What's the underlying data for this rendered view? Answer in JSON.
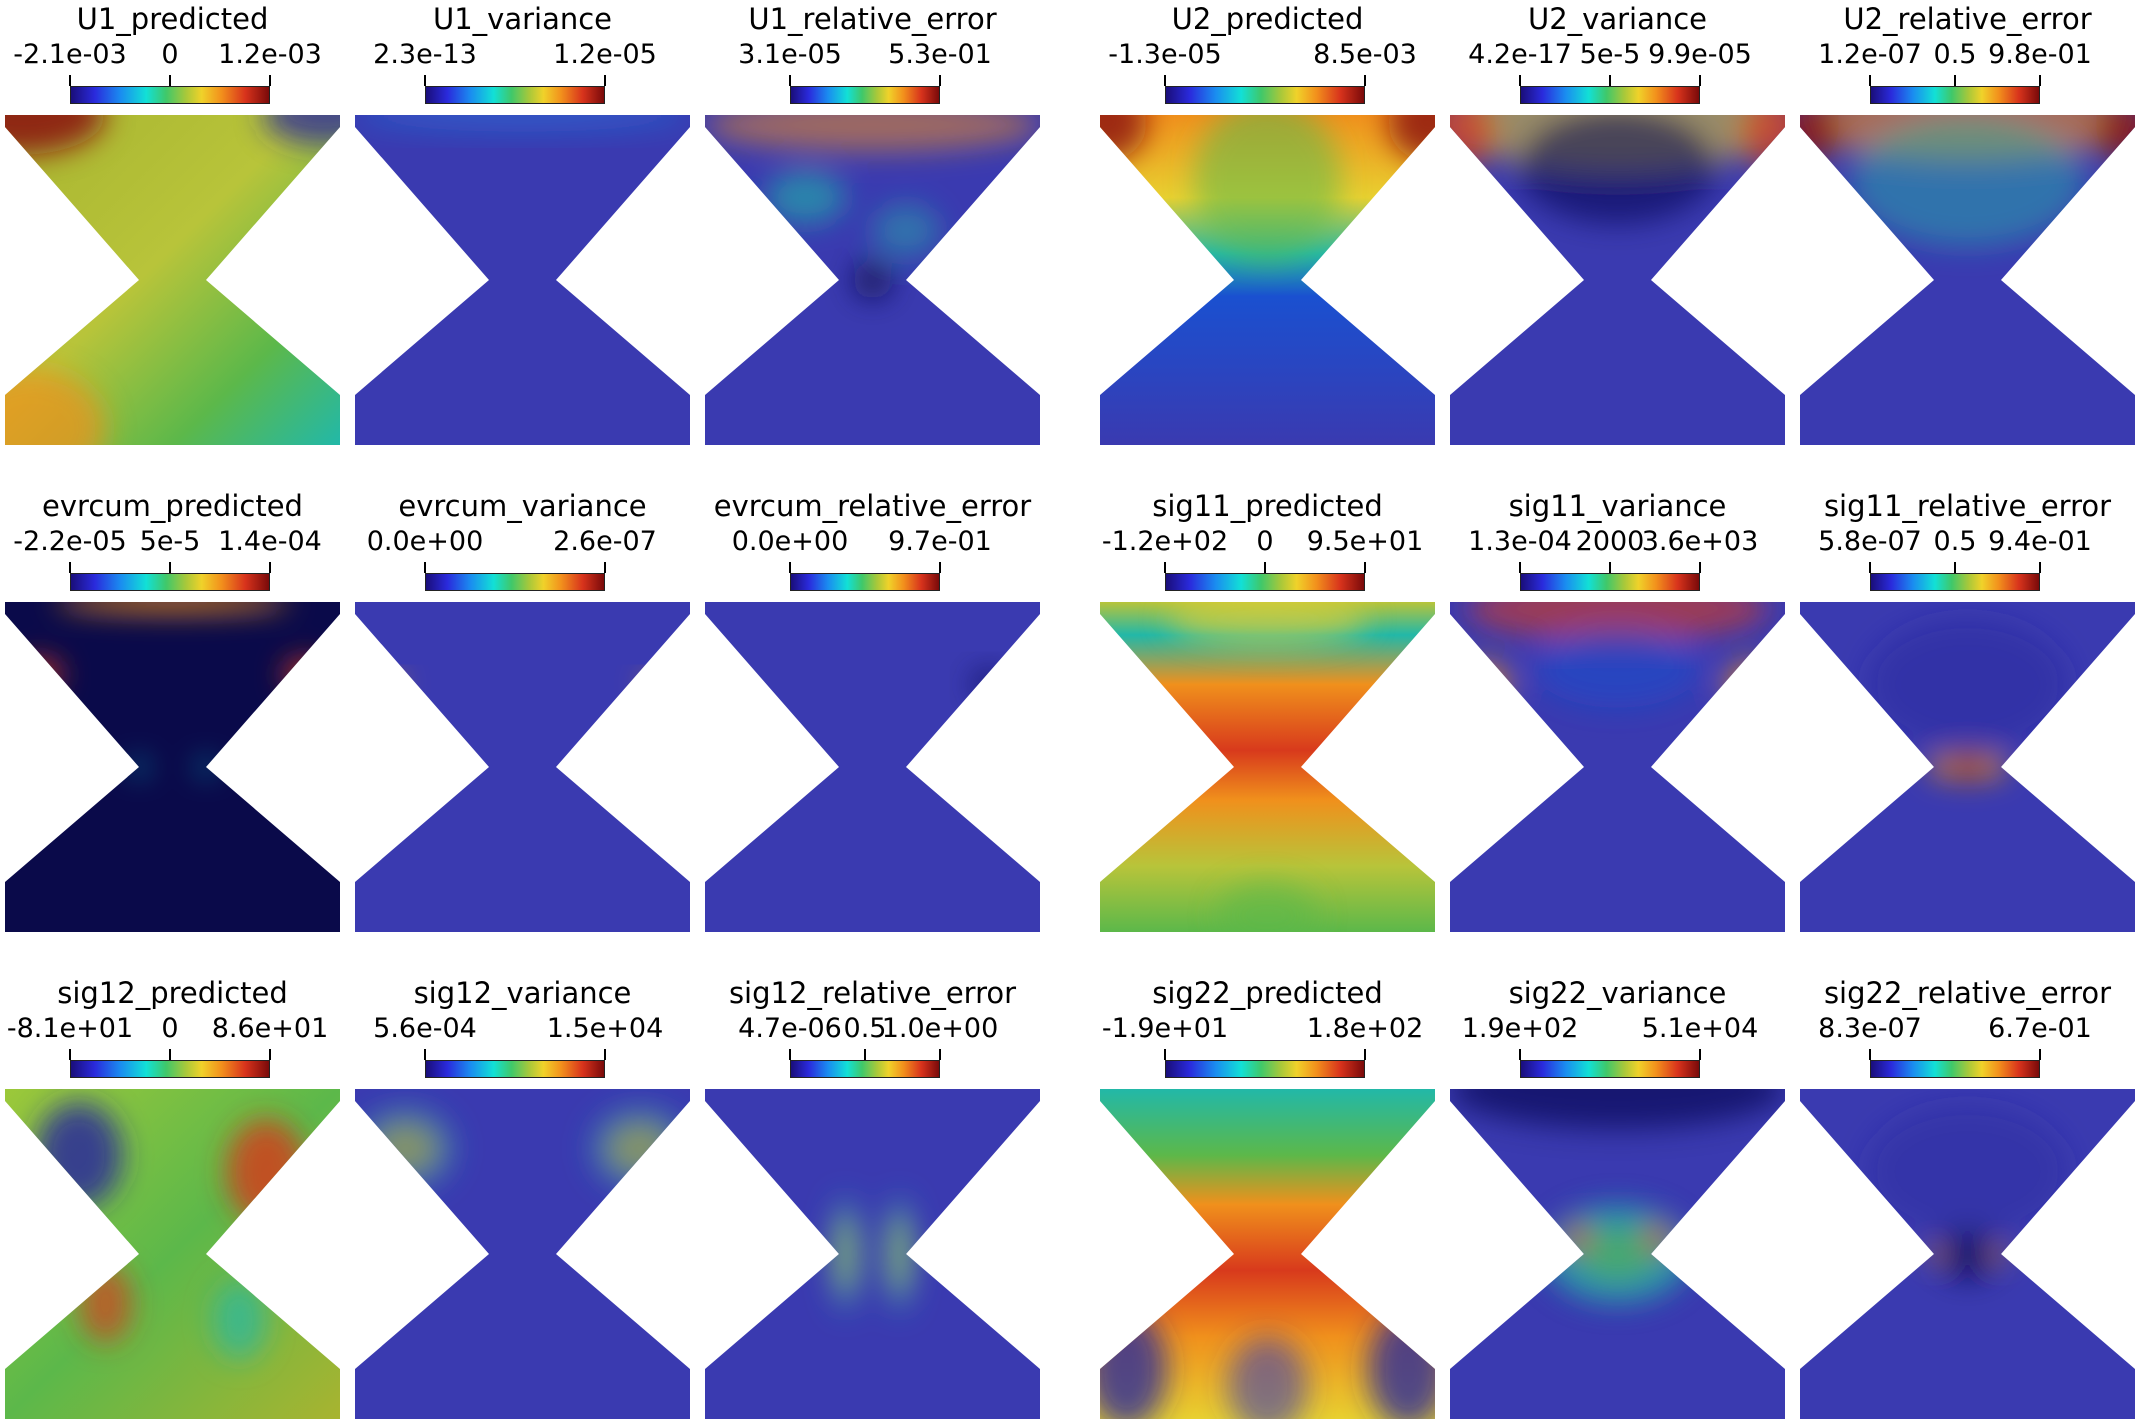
{
  "panels": [
    {
      "id": "u1-predicted",
      "title": "U1_predicted",
      "labels": [
        "-2.1e-03",
        "0",
        "1.2e-03"
      ],
      "style": "u1_pred"
    },
    {
      "id": "u1-variance",
      "title": "U1_variance",
      "labels": [
        "2.3e-13",
        "1.2e-05"
      ],
      "style": "u1_var"
    },
    {
      "id": "u1-relative-error",
      "title": "U1_relative_error",
      "labels": [
        "3.1e-05",
        "5.3e-01"
      ],
      "style": "u1_err"
    },
    {
      "id": "u2-predicted",
      "title": "U2_predicted",
      "labels": [
        "-1.3e-05",
        "8.5e-03"
      ],
      "style": "u2_pred"
    },
    {
      "id": "u2-variance",
      "title": "U2_variance",
      "labels": [
        "4.2e-17",
        "5e-5",
        "9.9e-05"
      ],
      "style": "u2_var"
    },
    {
      "id": "u2-relative-error",
      "title": "U2_relative_error",
      "labels": [
        "1.2e-07",
        "0.5",
        "9.8e-01"
      ],
      "style": "u2_err"
    },
    {
      "id": "evrcum-predicted",
      "title": "evrcum_predicted",
      "labels": [
        "-2.2e-05",
        "5e-5",
        "1.4e-04"
      ],
      "style": "ev_pred"
    },
    {
      "id": "evrcum-variance",
      "title": "evrcum_variance",
      "labels": [
        "0.0e+00",
        "2.6e-07"
      ],
      "style": "ev_var"
    },
    {
      "id": "evrcum-relative-error",
      "title": "evrcum_relative_error",
      "labels": [
        "0.0e+00",
        "9.7e-01"
      ],
      "style": "ev_err"
    },
    {
      "id": "sig11-predicted",
      "title": "sig11_predicted",
      "labels": [
        "-1.2e+02",
        "0",
        "9.5e+01"
      ],
      "style": "s11_pred"
    },
    {
      "id": "sig11-variance",
      "title": "sig11_variance",
      "labels": [
        "1.3e-04",
        "2000",
        "3.6e+03"
      ],
      "style": "s11_var"
    },
    {
      "id": "sig11-relative-error",
      "title": "sig11_relative_error",
      "labels": [
        "5.8e-07",
        "0.5",
        "9.4e-01"
      ],
      "style": "s11_err"
    },
    {
      "id": "sig12-predicted",
      "title": "sig12_predicted",
      "labels": [
        "-8.1e+01",
        "0",
        "8.6e+01"
      ],
      "style": "s12_pred"
    },
    {
      "id": "sig12-variance",
      "title": "sig12_variance",
      "labels": [
        "5.6e-04",
        "1.5e+04"
      ],
      "style": "s12_var"
    },
    {
      "id": "sig12-relative-error",
      "title": "sig12_relative_error",
      "labels": [
        "4.7e-06",
        "0.5",
        "1.0e+00"
      ],
      "style": "s12_err"
    },
    {
      "id": "sig22-predicted",
      "title": "sig22_predicted",
      "labels": [
        "-1.9e+01",
        "1.8e+02"
      ],
      "style": "s22_pred"
    },
    {
      "id": "sig22-variance",
      "title": "sig22_variance",
      "labels": [
        "1.9e+02",
        "5.1e+04"
      ],
      "style": "s22_var"
    },
    {
      "id": "sig22-relative-error",
      "title": "sig22_relative_error",
      "labels": [
        "8.3e-07",
        "6.7e-01"
      ],
      "style": "s22_err"
    }
  ]
}
